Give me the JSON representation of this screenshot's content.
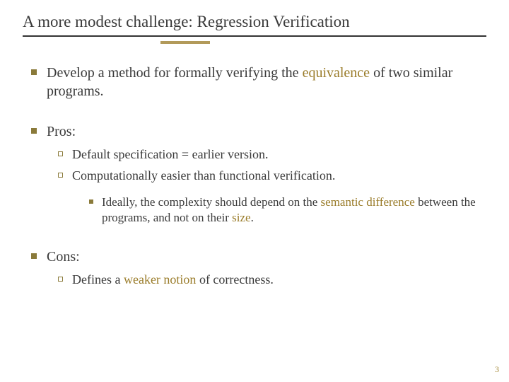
{
  "colors": {
    "text": "#3a3a3a",
    "accent": "#b29a5a",
    "bullet_fill": "#8a7a3a",
    "highlight": "#9a7c2a",
    "pagenum": "#a58a3a",
    "background": "#ffffff"
  },
  "typography": {
    "family": "Georgia, serif",
    "title_size_pt": 23,
    "lvl1_size_pt": 20,
    "lvl2_size_pt": 18,
    "lvl3_size_pt": 17,
    "pagenum_size_pt": 12
  },
  "title": "A more modest challenge: Regression Verification",
  "bullets": {
    "b1_pre": "Develop a method for formally verifying the ",
    "b1_hl": "equivalence",
    "b1_post": " of two similar programs.",
    "b2": "Pros:",
    "b2_1": "Default specification = earlier version.",
    "b2_2": "Computationally easier than functional verification.",
    "b2_2_1_pre": "Ideally, the complexity should depend on the ",
    "b2_2_1_hl1": "semantic difference",
    "b2_2_1_mid": " between the programs, and not on their ",
    "b2_2_1_hl2": "size",
    "b2_2_1_post": ".",
    "b3": "Cons:",
    "b3_1_pre": "Defines a ",
    "b3_1_hl": "weaker notion",
    "b3_1_post": " of correctness."
  },
  "page_number": "3"
}
